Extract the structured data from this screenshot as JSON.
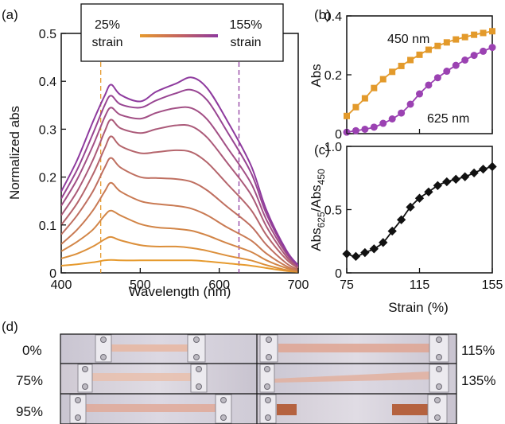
{
  "panel_labels": {
    "a": "(a)",
    "b": "(b)",
    "c": "(c)",
    "d": "(d)"
  },
  "colors": {
    "strain_low": "#e69a2e",
    "strain_high": "#8e3a9e",
    "abs450": "#e39a2b",
    "abs625": "#9b42b2",
    "ratio": "#111111"
  },
  "chart_data": [
    {
      "id": "a",
      "type": "line",
      "xlabel": "Wavelength (nm)",
      "ylabel": "Normalized abs",
      "xlim": [
        400,
        700
      ],
      "ylim": [
        0,
        0.5
      ],
      "xticks": [
        "400",
        "500",
        "600",
        "700"
      ],
      "yticks": [
        "0",
        "0.1",
        "0.2",
        "0.3",
        "0.4",
        "0.5"
      ],
      "vlines": [
        450,
        625
      ],
      "legend": {
        "left_label_1": "25%",
        "left_label_2": "strain",
        "right_label_1": "155%",
        "right_label_2": "strain"
      },
      "x": [
        400,
        420,
        440,
        455,
        463,
        475,
        500,
        520,
        545,
        565,
        585,
        610,
        640,
        660,
        685,
        700
      ],
      "series": [
        {
          "values": [
            0.015,
            0.018,
            0.022,
            0.026,
            0.027,
            0.026,
            0.026,
            0.026,
            0.026,
            0.026,
            0.024,
            0.02,
            0.015,
            0.01,
            0.004,
            0.002
          ]
        },
        {
          "values": [
            0.03,
            0.04,
            0.055,
            0.07,
            0.075,
            0.068,
            0.058,
            0.055,
            0.055,
            0.052,
            0.046,
            0.036,
            0.026,
            0.016,
            0.006,
            0.003
          ]
        },
        {
          "values": [
            0.045,
            0.065,
            0.09,
            0.12,
            0.13,
            0.12,
            0.102,
            0.095,
            0.092,
            0.088,
            0.078,
            0.062,
            0.044,
            0.026,
            0.01,
            0.004
          ]
        },
        {
          "values": [
            0.06,
            0.09,
            0.13,
            0.17,
            0.188,
            0.17,
            0.15,
            0.144,
            0.14,
            0.134,
            0.12,
            0.095,
            0.068,
            0.04,
            0.014,
            0.005
          ]
        },
        {
          "values": [
            0.08,
            0.12,
            0.17,
            0.22,
            0.24,
            0.22,
            0.2,
            0.198,
            0.196,
            0.19,
            0.172,
            0.138,
            0.098,
            0.058,
            0.02,
            0.007
          ]
        },
        {
          "values": [
            0.1,
            0.145,
            0.205,
            0.26,
            0.285,
            0.265,
            0.25,
            0.252,
            0.256,
            0.252,
            0.23,
            0.186,
            0.132,
            0.078,
            0.028,
            0.01
          ]
        },
        {
          "values": [
            0.12,
            0.17,
            0.235,
            0.295,
            0.32,
            0.302,
            0.292,
            0.3,
            0.308,
            0.306,
            0.282,
            0.23,
            0.164,
            0.096,
            0.034,
            0.012
          ]
        },
        {
          "values": [
            0.14,
            0.195,
            0.265,
            0.325,
            0.345,
            0.33,
            0.322,
            0.334,
            0.344,
            0.344,
            0.32,
            0.262,
            0.188,
            0.11,
            0.04,
            0.014
          ]
        },
        {
          "values": [
            0.155,
            0.215,
            0.29,
            0.35,
            0.37,
            0.352,
            0.345,
            0.36,
            0.375,
            0.382,
            0.36,
            0.295,
            0.21,
            0.122,
            0.044,
            0.015
          ]
        },
        {
          "values": [
            0.17,
            0.235,
            0.315,
            0.37,
            0.393,
            0.372,
            0.358,
            0.378,
            0.395,
            0.408,
            0.385,
            0.318,
            0.225,
            0.13,
            0.047,
            0.016
          ]
        }
      ]
    },
    {
      "id": "b",
      "type": "scatter",
      "ylabel": "Abs",
      "xlim": [
        75,
        155
      ],
      "ylim": [
        0,
        0.4
      ],
      "yticks": [
        "0",
        "0.2",
        "0.4"
      ],
      "x": [
        75,
        80,
        85,
        90,
        95,
        100,
        105,
        110,
        115,
        120,
        125,
        130,
        135,
        140,
        145,
        150,
        155
      ],
      "series": [
        {
          "name": "450 nm",
          "values": [
            0.06,
            0.09,
            0.12,
            0.155,
            0.185,
            0.21,
            0.23,
            0.25,
            0.268,
            0.285,
            0.298,
            0.31,
            0.32,
            0.328,
            0.336,
            0.342,
            0.348
          ]
        },
        {
          "name": "625 nm",
          "values": [
            0.005,
            0.01,
            0.015,
            0.022,
            0.035,
            0.05,
            0.07,
            0.1,
            0.135,
            0.165,
            0.19,
            0.212,
            0.232,
            0.25,
            0.266,
            0.28,
            0.293
          ]
        }
      ]
    },
    {
      "id": "c",
      "type": "line",
      "xlabel": "Strain (%)",
      "ylabel_main": "Abs",
      "ylabel_sub1": "625",
      "ylabel_mid": "/Abs",
      "ylabel_sub2": "450",
      "xlim": [
        75,
        155
      ],
      "ylim": [
        0,
        1.0
      ],
      "xticks": [
        "75",
        "115",
        "155"
      ],
      "yticks": [
        "0",
        "0.5",
        "1.0"
      ],
      "x": [
        75,
        80,
        85,
        90,
        95,
        100,
        105,
        110,
        115,
        120,
        125,
        130,
        135,
        140,
        145,
        150,
        155
      ],
      "values": [
        0.15,
        0.13,
        0.16,
        0.19,
        0.24,
        0.33,
        0.42,
        0.52,
        0.59,
        0.64,
        0.69,
        0.72,
        0.74,
        0.76,
        0.79,
        0.82,
        0.84
      ]
    }
  ],
  "photos": {
    "strain_labels": [
      "0%",
      "75%",
      "95%",
      "115%",
      "135%"
    ]
  }
}
